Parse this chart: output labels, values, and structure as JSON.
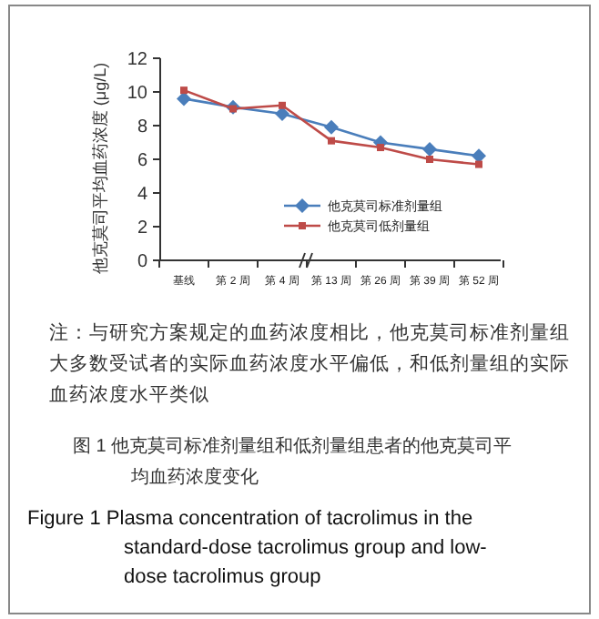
{
  "chart_data": {
    "type": "line",
    "title": "图 1  他克莫司标准剂量组和低剂量组患者的他克莫司平均血药浓度变化",
    "subtitle": "Figure 1  Plasma concentration of tacrolimus in the standard-dose tacrolimus group and low-dose tacrolimus group",
    "ylabel": "他克莫司平均血药浓度 (μg/L)",
    "annotations": [
      "注：与研究方案规定的血药浓度相比，他克莫司标准剂量组大多数受试者的实际血药浓度水平偏低，和低剂量组的实际血药浓度水平类似"
    ],
    "categories": [
      "基线",
      "第 2 周",
      "第 4 周",
      "第 13 周",
      "第 26 周",
      "第 39 周",
      "第 52 周"
    ],
    "series": [
      {
        "name": "他克莫司标准剂量组",
        "color": "#4a7ebb",
        "marker": "diamond",
        "values": [
          9.6,
          9.1,
          8.7,
          7.9,
          7.0,
          6.6,
          6.2
        ]
      },
      {
        "name": "他克莫司低剂量组",
        "color": "#be4b48",
        "marker": "square",
        "values": [
          10.1,
          9.0,
          9.2,
          7.1,
          6.7,
          6.0,
          5.7
        ]
      }
    ],
    "ylim": [
      0,
      12
    ],
    "yticks": [
      0,
      2,
      4,
      6,
      8,
      10,
      12
    ],
    "legend": "center",
    "line_style": "solid"
  }
}
